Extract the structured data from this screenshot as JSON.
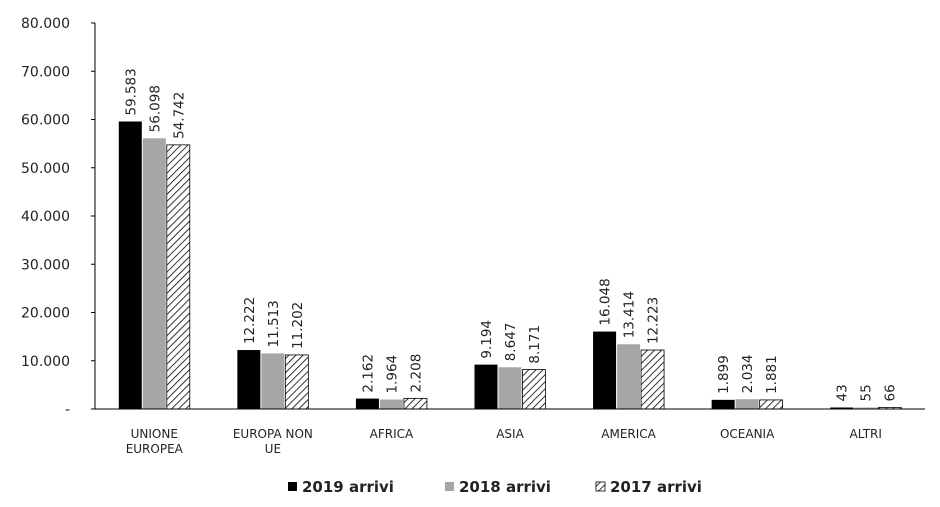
{
  "chart_data": {
    "type": "bar",
    "categories": [
      [
        "UNIONE",
        "EUROPEA"
      ],
      [
        "EUROPA NON",
        "UE"
      ],
      [
        "AFRICA"
      ],
      [
        "ASIA"
      ],
      [
        "AMERICA"
      ],
      [
        "OCEANIA"
      ],
      [
        "ALTRI"
      ]
    ],
    "series": [
      {
        "name": "2019 arrivi",
        "fill": "solid-black",
        "color": "#000000",
        "values": [
          59583,
          12222,
          2162,
          9194,
          16048,
          1899,
          43
        ],
        "labels": [
          "59.583",
          "12.222",
          "2.162",
          "9.194",
          "16.048",
          "1.899",
          "43"
        ]
      },
      {
        "name": "2018 arrivi",
        "fill": "solid-gray",
        "color": "#a6a6a6",
        "values": [
          56098,
          11513,
          1964,
          8647,
          13414,
          2034,
          55
        ],
        "labels": [
          "56.098",
          "11.513",
          "1.964",
          "8.647",
          "13.414",
          "2.034",
          "55"
        ]
      },
      {
        "name": "2017 arrivi",
        "fill": "diagonal-hatch",
        "color": "#000000",
        "values": [
          54742,
          11202,
          2208,
          8171,
          12223,
          1881,
          66
        ],
        "labels": [
          "54.742",
          "11.202",
          "2.208",
          "8.171",
          "12.223",
          "1.881",
          "66"
        ]
      }
    ],
    "yaxis": {
      "min": 0,
      "max": 80000,
      "ticks": [
        0,
        10000,
        20000,
        30000,
        40000,
        50000,
        60000,
        70000,
        80000
      ],
      "tick_labels": [
        "-",
        "10.000",
        "20.000",
        "30.000",
        "40.000",
        "50.000",
        "60.000",
        "70.000",
        "80.000"
      ]
    },
    "grid": false,
    "legend_position": "bottom"
  }
}
